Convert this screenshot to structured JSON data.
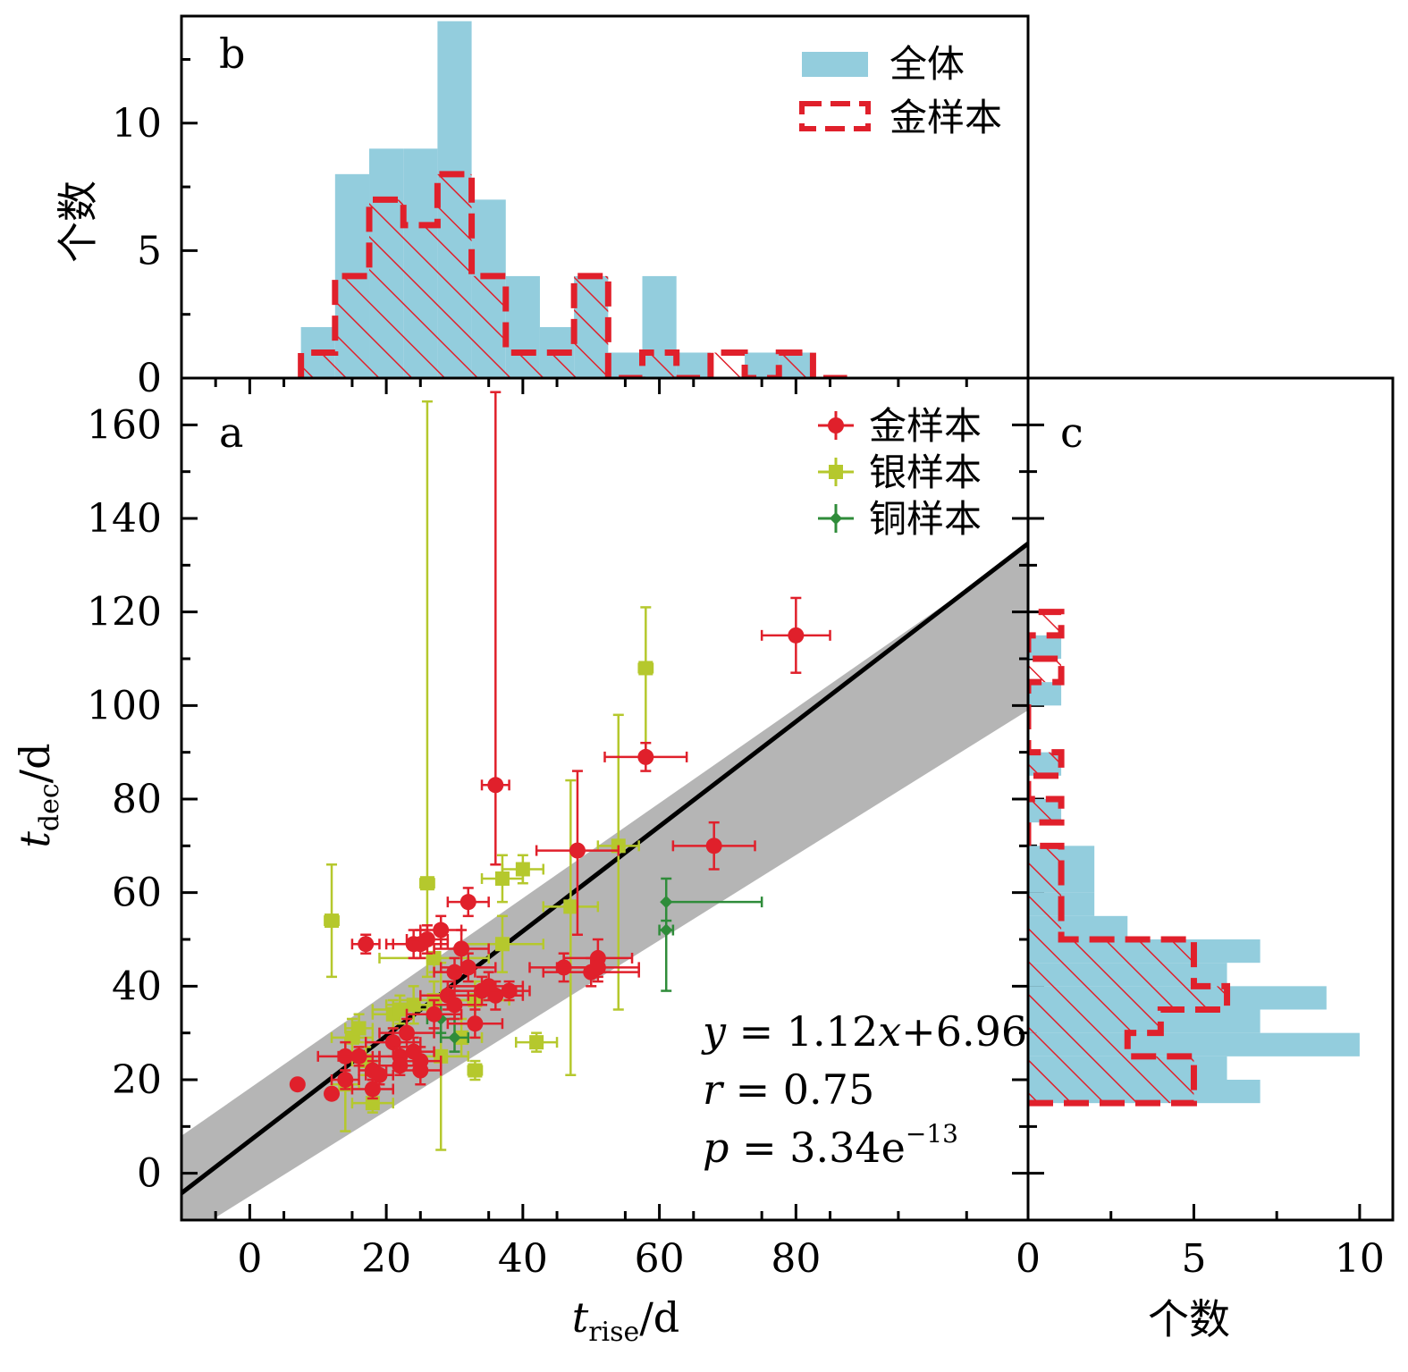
{
  "colors": {
    "all_fill": "#93cddd",
    "gold": "#e0202b",
    "silver": "#b5c82d",
    "copper": "#2f8c3a",
    "band": "#a8a8a8",
    "fit": "#000000"
  },
  "chart_data": [
    {
      "panel": "a",
      "type": "scatter",
      "xlabel": "t",
      "xlabel_sub": "rise",
      "xlabel_unit": "/d",
      "ylabel": "t",
      "ylabel_sub": "dec",
      "ylabel_unit": "/d",
      "xlim": [
        -10,
        114
      ],
      "ylim": [
        -10,
        170
      ],
      "xticks": [
        0,
        20,
        40,
        60,
        80
      ],
      "yticks": [
        0,
        20,
        40,
        60,
        80,
        100,
        120,
        140,
        160
      ],
      "legend": [
        "金样本",
        "银样本",
        "铜样本"
      ],
      "legend_position": "top-right",
      "annotations": {
        "eq_lhs": "y",
        "eq_mid": " = 1.12",
        "eq_x": "x",
        "eq_rhs": "+6.96",
        "r_lhs": "r",
        "r_rhs": " = 0.75",
        "p_lhs": "p",
        "p_mid": " = 3.34e",
        "p_exp": "−13"
      },
      "fit": {
        "slope": 1.12,
        "intercept": 6.96,
        "band_at_xmin": [
          -14,
          8
        ],
        "band_at_xmax": [
          99,
          134
        ]
      },
      "series": [
        {
          "name": "金样本",
          "marker": "circle",
          "points": [
            [
              7,
              19,
              0,
              0,
              0,
              0
            ],
            [
              12,
              17,
              0,
              0,
              0,
              0
            ],
            [
              14,
              20,
              2,
              2,
              2,
              2
            ],
            [
              14,
              25,
              4,
              4,
              3,
              3
            ],
            [
              16,
              25,
              3,
              3,
              2,
              2
            ],
            [
              17,
              49,
              2,
              2,
              2,
              2
            ],
            [
              18,
              22,
              2,
              2,
              2,
              2
            ],
            [
              18,
              18,
              3,
              3,
              2,
              2
            ],
            [
              19,
              21,
              2,
              2,
              2,
              2
            ],
            [
              21,
              28,
              4,
              4,
              3,
              3
            ],
            [
              22,
              25,
              3,
              3,
              2,
              2
            ],
            [
              22,
              23,
              3,
              3,
              2,
              2
            ],
            [
              23,
              30,
              4,
              4,
              3,
              3
            ],
            [
              24,
              49,
              4,
              4,
              3,
              3
            ],
            [
              24,
              26,
              3,
              3,
              3,
              3
            ],
            [
              25,
              22,
              3,
              3,
              3,
              3
            ],
            [
              25,
              24,
              3,
              3,
              3,
              3
            ],
            [
              25,
              49,
              4,
              4,
              3,
              3
            ],
            [
              26,
              50,
              3,
              3,
              3,
              3
            ],
            [
              27,
              34,
              4,
              4,
              3,
              3
            ],
            [
              28,
              52,
              3,
              3,
              3,
              3
            ],
            [
              29,
              38,
              4,
              4,
              3,
              3
            ],
            [
              30,
              36,
              3,
              3,
              3,
              3
            ],
            [
              30,
              43,
              3,
              3,
              3,
              3
            ],
            [
              31,
              48,
              4,
              4,
              4,
              4
            ],
            [
              32,
              44,
              4,
              4,
              3,
              3
            ],
            [
              32,
              58,
              3,
              3,
              3,
              3
            ],
            [
              33,
              32,
              4,
              4,
              3,
              3
            ],
            [
              34,
              39,
              5,
              5,
              3,
              3
            ],
            [
              35,
              40,
              5,
              5,
              3,
              3
            ],
            [
              36,
              38,
              4,
              4,
              3,
              3
            ],
            [
              36,
              83,
              2,
              2,
              17,
              84
            ],
            [
              38,
              39,
              3,
              3,
              2,
              2
            ],
            [
              46,
              44,
              5,
              5,
              3,
              3
            ],
            [
              48,
              69,
              6,
              6,
              18,
              17
            ],
            [
              50,
              43,
              7,
              7,
              3,
              3
            ],
            [
              51,
              46,
              5,
              5,
              4,
              4
            ],
            [
              51,
              44,
              6,
              6,
              3,
              3
            ],
            [
              58,
              89,
              6,
              6,
              3,
              3
            ],
            [
              68,
              70,
              6,
              6,
              5,
              5
            ],
            [
              80,
              115,
              5,
              5,
              8,
              8
            ]
          ]
        },
        {
          "name": "银样本",
          "marker": "square",
          "points": [
            [
              12,
              54,
              1,
              1,
              12,
              12
            ],
            [
              14,
              19,
              2,
              2,
              10,
              10
            ],
            [
              15,
              29,
              3,
              3,
              4,
              4
            ],
            [
              16,
              31,
              2,
              2,
              3,
              3
            ],
            [
              17,
              24,
              2,
              2,
              3,
              3
            ],
            [
              18,
              15,
              3,
              3,
              2,
              2
            ],
            [
              21,
              34,
              3,
              3,
              3,
              3
            ],
            [
              22,
              35,
              4,
              4,
              3,
              3
            ],
            [
              24,
              36,
              4,
              4,
              4,
              4
            ],
            [
              26,
              62,
              1,
              1,
              20,
              103
            ],
            [
              27,
              46,
              8,
              8,
              3,
              3
            ],
            [
              27,
              37,
              5,
              5,
              4,
              4
            ],
            [
              28,
              25,
              4,
              4,
              20,
              20
            ],
            [
              31,
              29,
              3,
              3,
              4,
              4
            ],
            [
              33,
              37,
              5,
              5,
              4,
              4
            ],
            [
              33,
              22,
              1,
              1,
              2,
              2
            ],
            [
              37,
              49,
              6,
              6,
              6,
              6
            ],
            [
              37,
              63,
              3,
              3,
              5,
              5
            ],
            [
              40,
              65,
              3,
              3,
              3,
              3
            ],
            [
              42,
              28,
              3,
              3,
              2,
              2
            ],
            [
              47,
              57,
              4,
              4,
              36,
              27
            ],
            [
              54,
              70,
              3,
              3,
              35,
              28
            ],
            [
              58,
              108,
              1,
              1,
              18,
              13
            ]
          ]
        },
        {
          "name": "铜样本",
          "marker": "diamond",
          "points": [
            [
              28,
              33,
              2,
              2,
              3,
              3
            ],
            [
              30,
              29,
              2,
              2,
              3,
              3
            ],
            [
              61,
              58,
              0,
              14,
              4,
              5
            ],
            [
              61,
              52,
              1,
              1,
              13,
              6
            ]
          ]
        }
      ]
    },
    {
      "panel": "b",
      "type": "bar",
      "orientation": "vertical",
      "ylabel": "个数",
      "ylim": [
        0,
        14.2
      ],
      "yticks": [
        0,
        5,
        10
      ],
      "legend": [
        "全体",
        "金样本"
      ],
      "legend_position": "top-right",
      "bin_edges": [
        7.5,
        12.5,
        17.5,
        22.5,
        27.5,
        32.5,
        37.5,
        42.5,
        47.5,
        52.5,
        57.5,
        62.5,
        67.5,
        72.5,
        77.5,
        82.5,
        87.5
      ],
      "series": [
        {
          "name": "全体",
          "values": [
            2,
            8,
            9,
            9,
            14,
            7,
            4,
            2,
            4,
            1,
            4,
            1,
            0,
            1,
            1,
            0
          ]
        },
        {
          "name": "金样本",
          "values": [
            1,
            4,
            7,
            6,
            8,
            4,
            1,
            1,
            4,
            0,
            1,
            0,
            1,
            0,
            1,
            0
          ]
        }
      ]
    },
    {
      "panel": "c",
      "type": "bar",
      "orientation": "horizontal",
      "xlabel": "个数",
      "xlim": [
        0,
        11
      ],
      "xticks": [
        0,
        5,
        10
      ],
      "bin_edges": [
        15,
        20,
        25,
        30,
        35,
        40,
        45,
        50,
        55,
        60,
        65,
        70,
        75,
        80,
        85,
        90,
        95,
        100,
        105,
        110,
        115,
        120
      ],
      "series": [
        {
          "name": "全体",
          "values": [
            7,
            6,
            10,
            7,
            9,
            6,
            7,
            3,
            2,
            2,
            2,
            0,
            1,
            0,
            1,
            0,
            0,
            1,
            0,
            1,
            0
          ]
        },
        {
          "name": "金样本",
          "values": [
            5,
            5,
            3,
            4,
            6,
            5,
            5,
            1,
            1,
            1,
            1,
            0,
            1,
            0,
            1,
            0,
            0,
            0,
            1,
            0,
            1
          ]
        }
      ]
    }
  ]
}
